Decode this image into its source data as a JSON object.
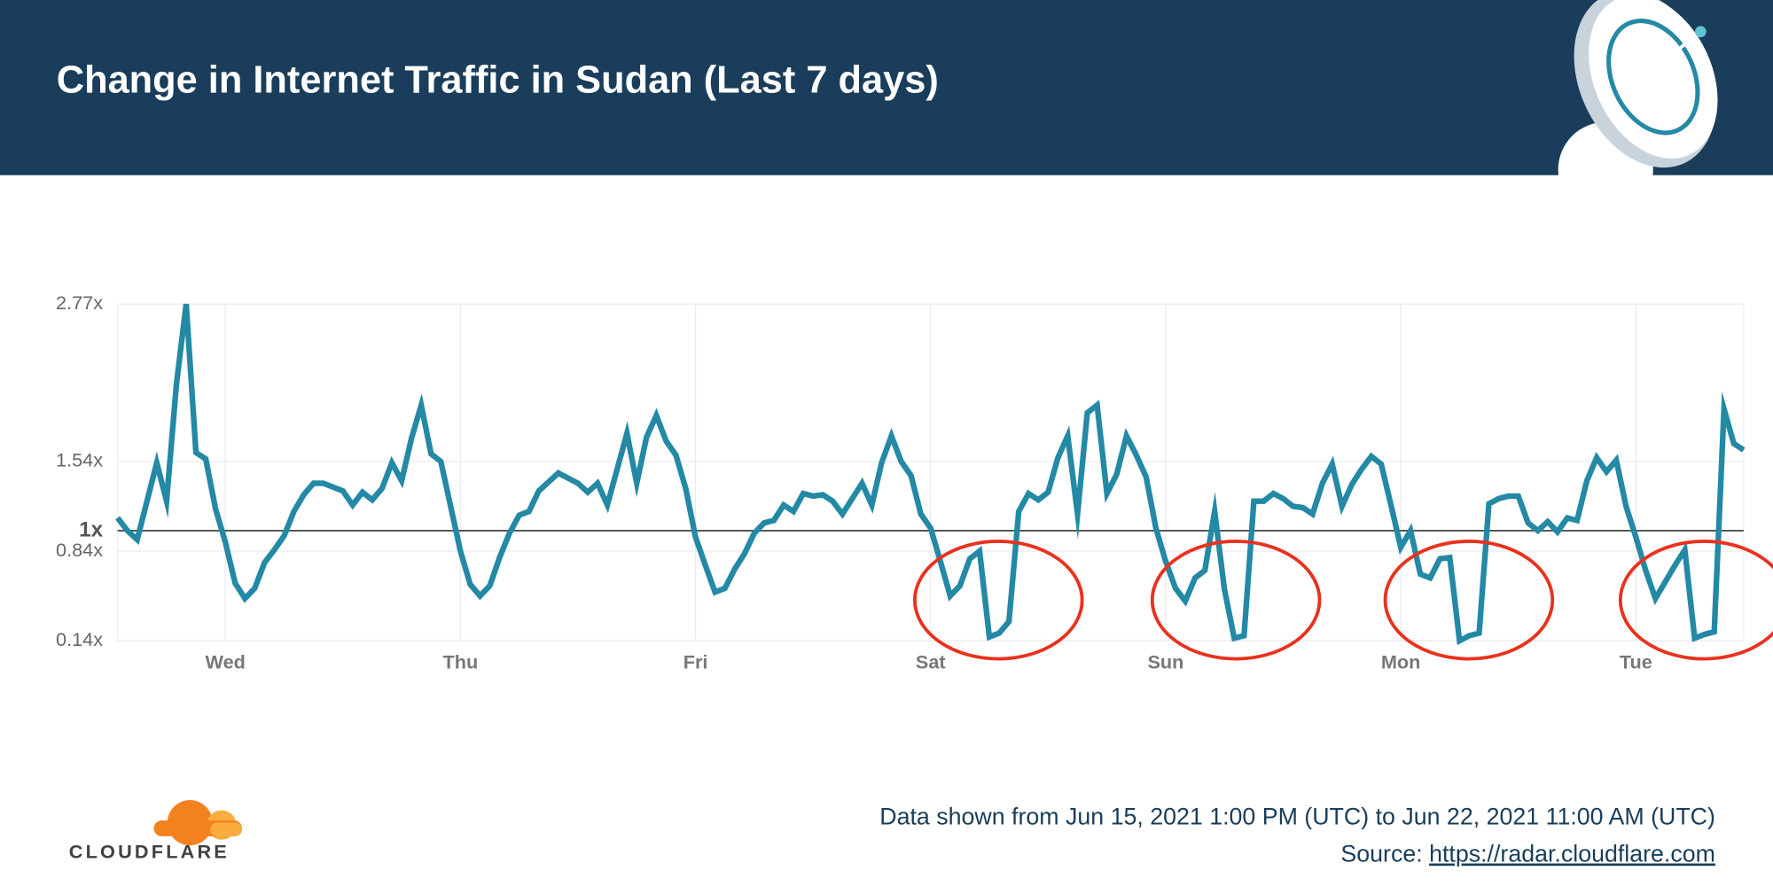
{
  "chart_data": {
    "type": "line",
    "title": "Change in Internet Traffic in Sudan (Last 7 days)",
    "color": "#2389a5",
    "grid": true,
    "xlim": [
      0,
      166
    ],
    "xticks": [
      {
        "value": 11,
        "label": "Wed"
      },
      {
        "value": 35,
        "label": "Thu"
      },
      {
        "value": 59,
        "label": "Fri"
      },
      {
        "value": 83,
        "label": "Sat"
      },
      {
        "value": 107,
        "label": "Sun"
      },
      {
        "value": 131,
        "label": "Mon"
      },
      {
        "value": 155,
        "label": "Tue"
      }
    ],
    "ylim": [
      0.14,
      2.77
    ],
    "yticks": [
      {
        "value": 0.14,
        "label": "0.14x"
      },
      {
        "value": 0.84,
        "label": "0.84x"
      },
      {
        "value": 1.54,
        "label": "1.54x"
      },
      {
        "value": 2.77,
        "label": "2.77x"
      }
    ],
    "baseline": {
      "value": 1,
      "label": "1x"
    },
    "values": [
      1.1,
      1.0,
      0.93,
      1.23,
      1.53,
      1.23,
      2.14,
      2.77,
      1.61,
      1.56,
      1.17,
      0.91,
      0.59,
      0.47,
      0.55,
      0.75,
      0.85,
      0.96,
      1.15,
      1.28,
      1.37,
      1.37,
      1.34,
      1.31,
      1.2,
      1.3,
      1.24,
      1.33,
      1.53,
      1.39,
      1.72,
      1.98,
      1.6,
      1.54,
      1.19,
      0.84,
      0.58,
      0.49,
      0.57,
      0.79,
      0.98,
      1.12,
      1.15,
      1.31,
      1.38,
      1.45,
      1.41,
      1.37,
      1.3,
      1.37,
      1.2,
      1.48,
      1.76,
      1.37,
      1.73,
      1.9,
      1.7,
      1.59,
      1.33,
      0.95,
      0.73,
      0.52,
      0.55,
      0.7,
      0.82,
      0.98,
      1.06,
      1.08,
      1.2,
      1.15,
      1.29,
      1.27,
      1.28,
      1.23,
      1.13,
      1.25,
      1.37,
      1.2,
      1.53,
      1.74,
      1.54,
      1.43,
      1.13,
      1.02,
      0.76,
      0.49,
      0.57,
      0.78,
      0.84,
      0.17,
      0.2,
      0.29,
      1.15,
      1.29,
      1.24,
      1.3,
      1.57,
      1.74,
      1.13,
      1.92,
      1.98,
      1.29,
      1.44,
      1.74,
      1.59,
      1.42,
      1.02,
      0.76,
      0.55,
      0.45,
      0.63,
      0.69,
      1.15,
      0.54,
      0.16,
      0.18,
      1.23,
      1.23,
      1.29,
      1.25,
      1.19,
      1.18,
      1.13,
      1.37,
      1.52,
      1.19,
      1.36,
      1.48,
      1.58,
      1.52,
      1.2,
      0.87,
      1.0,
      0.66,
      0.63,
      0.78,
      0.79,
      0.14,
      0.18,
      0.2,
      1.21,
      1.25,
      1.27,
      1.27,
      1.06,
      1.0,
      1.07,
      0.99,
      1.1,
      1.08,
      1.39,
      1.57,
      1.46,
      1.55,
      1.19,
      0.95,
      0.69,
      0.47,
      0.6,
      0.73,
      0.85,
      0.16,
      0.19,
      0.21,
      1.95,
      1.68,
      1.63
    ]
  },
  "footer": {
    "logo": "CLOUDFLARE",
    "date_range": "Data shown from Jun 15, 2021 1:00 PM (UTC) to Jun 22, 2021 11:00 AM (UTC)",
    "source_label": "Source:",
    "source_url": "https://radar.cloudflare.com"
  }
}
